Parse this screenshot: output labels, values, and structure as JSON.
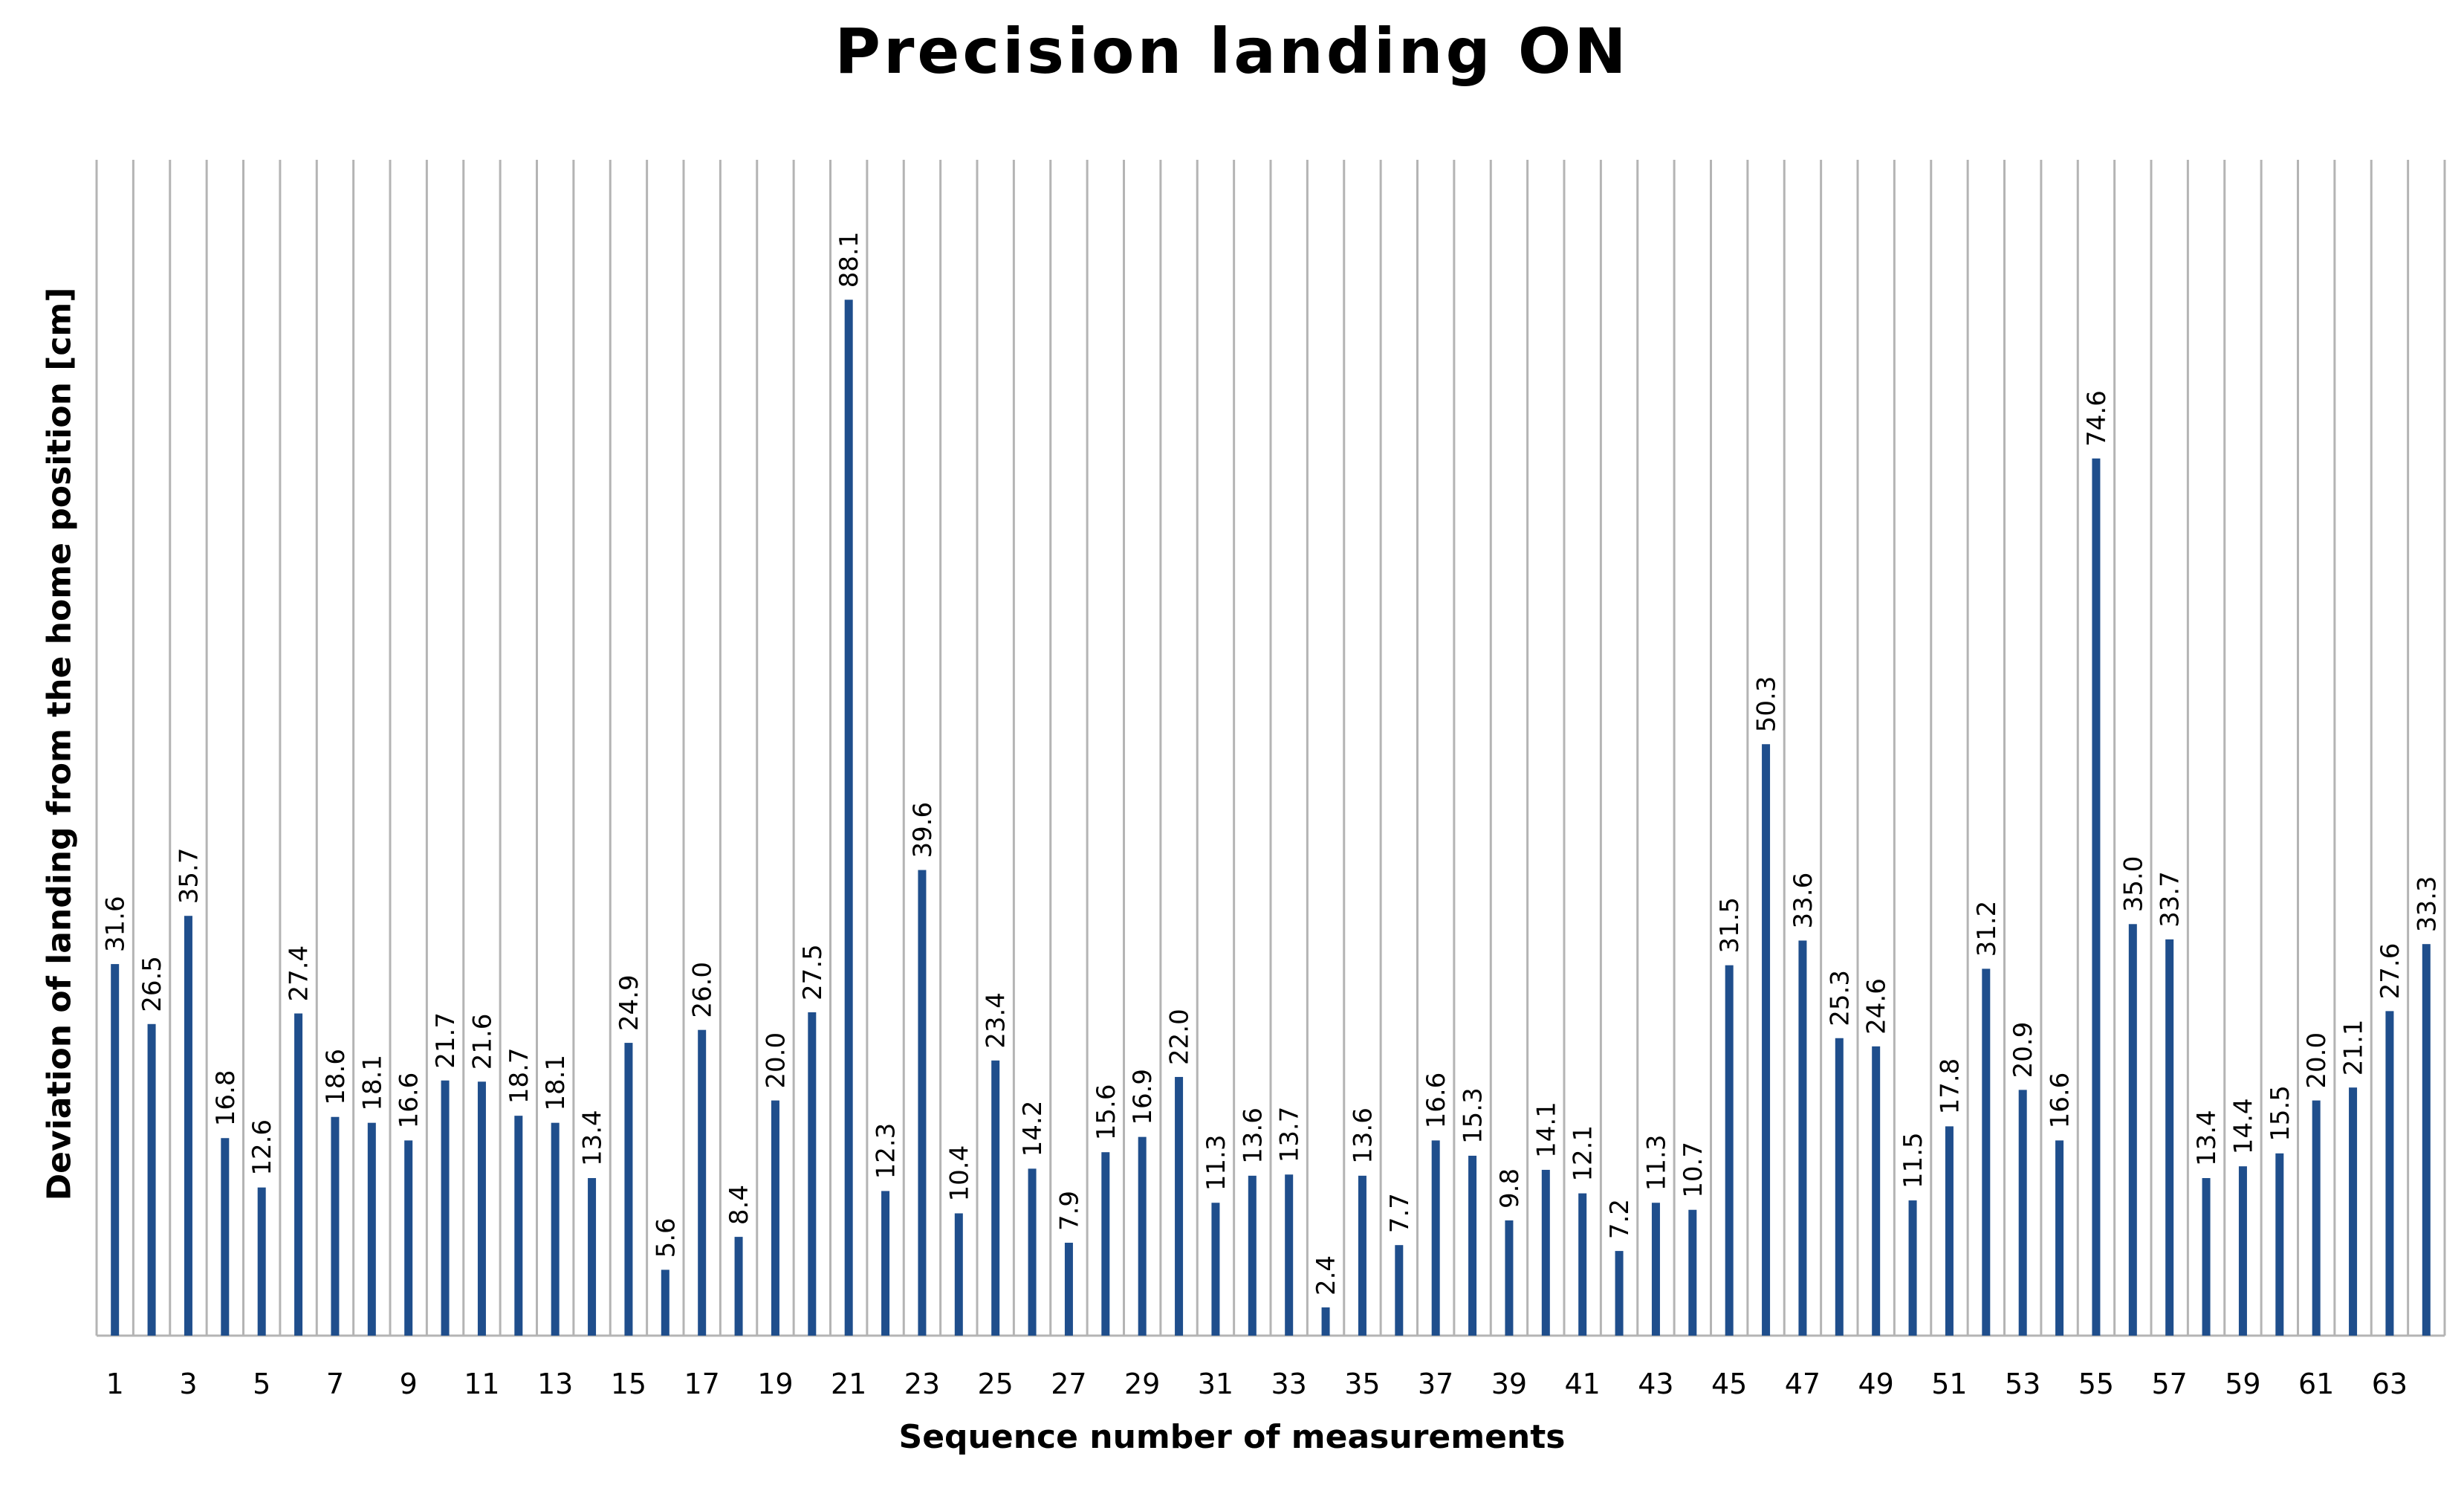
{
  "chart_data": {
    "type": "bar",
    "title": "Precision landing ON",
    "xlabel": "Sequence number of measurements",
    "ylabel": "Deviation of landing from the home position [cm]",
    "categories": [
      1,
      2,
      3,
      4,
      5,
      6,
      7,
      8,
      9,
      10,
      11,
      12,
      13,
      14,
      15,
      16,
      17,
      18,
      19,
      20,
      21,
      22,
      23,
      24,
      25,
      26,
      27,
      28,
      29,
      30,
      31,
      32,
      33,
      34,
      35,
      36,
      37,
      38,
      39,
      40,
      41,
      42,
      43,
      44,
      45,
      46,
      47,
      48,
      49,
      50,
      51,
      52,
      53,
      54,
      55,
      56,
      57,
      58,
      59,
      60,
      61,
      62,
      63,
      64
    ],
    "tick_labels": [
      "1",
      "3",
      "5",
      "7",
      "9",
      "11",
      "13",
      "15",
      "17",
      "19",
      "21",
      "23",
      "25",
      "27",
      "29",
      "31",
      "33",
      "35",
      "37",
      "39",
      "41",
      "43",
      "45",
      "47",
      "49",
      "51",
      "53",
      "55",
      "57",
      "59",
      "61",
      "63"
    ],
    "values": [
      31.6,
      26.5,
      35.7,
      16.8,
      12.6,
      27.4,
      18.6,
      18.1,
      16.6,
      21.7,
      21.6,
      18.7,
      18.1,
      13.4,
      24.9,
      5.6,
      26.0,
      8.4,
      20.0,
      27.5,
      88.1,
      12.3,
      39.6,
      10.4,
      23.4,
      14.2,
      7.9,
      15.6,
      16.9,
      22.0,
      11.3,
      13.6,
      13.7,
      2.4,
      13.6,
      7.7,
      16.6,
      15.3,
      9.8,
      14.1,
      12.1,
      7.2,
      11.3,
      10.7,
      31.5,
      50.3,
      33.6,
      25.3,
      24.6,
      11.5,
      17.8,
      31.2,
      20.9,
      16.6,
      74.6,
      35.0,
      33.7,
      13.4,
      14.4,
      15.5,
      20.0,
      21.1,
      27.6,
      33.3
    ],
    "data_labels": [
      "31.6",
      "26.5",
      "35.7",
      "16.8",
      "12.6",
      "27.4",
      "18.6",
      "18.1",
      "16.6",
      "21.7",
      "21.6",
      "18.7",
      "18.1",
      "13.4",
      "24.9",
      "5.6",
      "26.0",
      "8.4",
      "20.0",
      "27.5",
      "88.1",
      "12.3",
      "39.6",
      "10.4",
      "23.4",
      "14.2",
      "7.9",
      "15.6",
      "16.9",
      "22.0",
      "11.3",
      "13.6",
      "13.7",
      "2.4",
      "13.6",
      "7.7",
      "16.6",
      "15.3",
      "9.8",
      "14.1",
      "12.1",
      "7.2",
      "11.3",
      "10.7",
      "31.5",
      "50.3",
      "33.6",
      "25.3",
      "24.6",
      "11.5",
      "17.8",
      "31.2",
      "20.9",
      "16.6",
      "74.6",
      "35.0",
      "33.7",
      "13.4",
      "14.4",
      "15.5",
      "20.0",
      "21.1",
      "27.6",
      "33.3"
    ],
    "ylim": [
      0,
      100
    ],
    "grid": "vertical",
    "legend": "none",
    "bar_color": "#1f4e8c",
    "grid_color": "#b4b4b4"
  }
}
